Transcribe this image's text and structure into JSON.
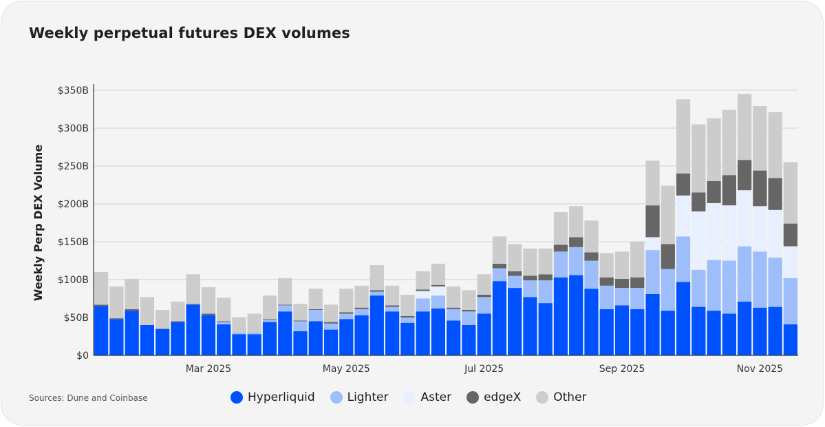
{
  "title": "Weekly perpetual futures DEX volumes",
  "source": "Sources: Dune and Coinbase",
  "chart_data": {
    "type": "bar",
    "stacked": true,
    "ylabel": "Weekly Perp DEX Volume",
    "xlabel": "",
    "ylim": [
      0,
      360
    ],
    "yticks": [
      0,
      50,
      100,
      150,
      200,
      250,
      300,
      350
    ],
    "ytick_labels": [
      "$0",
      "$50B",
      "$100B",
      "$150B",
      "$200B",
      "$250B",
      "$300B",
      "$350B"
    ],
    "xtick_labels": [
      {
        "label": "Mar 2025",
        "at_index": 7
      },
      {
        "label": "May 2025",
        "at_index": 16
      },
      {
        "label": "Jul 2025",
        "at_index": 25
      },
      {
        "label": "Sep 2025",
        "at_index": 34
      },
      {
        "label": "Nov 2025",
        "at_index": 43
      }
    ],
    "grid": true,
    "legend_position": "bottom",
    "series": [
      {
        "name": "Hyperliquid",
        "color": "#0052ff",
        "values": [
          65,
          48,
          59,
          40,
          35,
          44,
          67,
          53,
          41,
          28,
          28,
          44,
          58,
          32,
          45,
          34,
          48,
          53,
          79,
          58,
          43,
          58,
          62,
          46,
          40,
          55,
          98,
          89,
          77,
          69,
          103,
          106,
          88,
          61,
          66,
          61,
          81,
          59,
          97,
          64,
          59,
          55,
          71,
          63,
          64,
          41
        ]
      },
      {
        "name": "Lighter",
        "color": "#9dbdfb",
        "values": [
          0,
          0,
          0,
          0,
          0,
          0,
          0,
          0,
          3,
          2,
          2,
          3,
          8,
          13,
          15,
          8,
          7,
          8,
          5,
          6,
          7,
          17,
          17,
          15,
          18,
          22,
          17,
          16,
          22,
          30,
          34,
          37,
          37,
          31,
          23,
          28,
          58,
          55,
          60,
          49,
          67,
          70,
          73,
          74,
          65,
          61
        ]
      },
      {
        "name": "Aster",
        "color": "#e8effe",
        "values": [
          0,
          0,
          0,
          0,
          0,
          0,
          0,
          0,
          0,
          0,
          0,
          0,
          0,
          0,
          0,
          0,
          0,
          0,
          0,
          0,
          0,
          10,
          12,
          0,
          0,
          0,
          0,
          0,
          0,
          0,
          0,
          0,
          0,
          0,
          0,
          0,
          17,
          0,
          54,
          77,
          75,
          73,
          74,
          60,
          63,
          42
        ]
      },
      {
        "name": "edgeX",
        "color": "#666666",
        "values": [
          2,
          1,
          2,
          0,
          0,
          1,
          1,
          2,
          1,
          0,
          0,
          1,
          1,
          1,
          1,
          2,
          2,
          2,
          2,
          2,
          2,
          2,
          2,
          2,
          2,
          3,
          6,
          6,
          6,
          8,
          9,
          13,
          11,
          11,
          12,
          14,
          42,
          33,
          29,
          25,
          29,
          40,
          40,
          47,
          42,
          30
        ]
      },
      {
        "name": "Other",
        "color": "#cccccc",
        "values": [
          43,
          42,
          40,
          37,
          25,
          26,
          39,
          35,
          31,
          20,
          25,
          31,
          35,
          22,
          27,
          23,
          31,
          29,
          33,
          26,
          28,
          24,
          28,
          28,
          26,
          27,
          36,
          36,
          36,
          34,
          43,
          41,
          42,
          32,
          36,
          47,
          59,
          77,
          98,
          90,
          83,
          86,
          87,
          85,
          87,
          81
        ]
      }
    ]
  }
}
